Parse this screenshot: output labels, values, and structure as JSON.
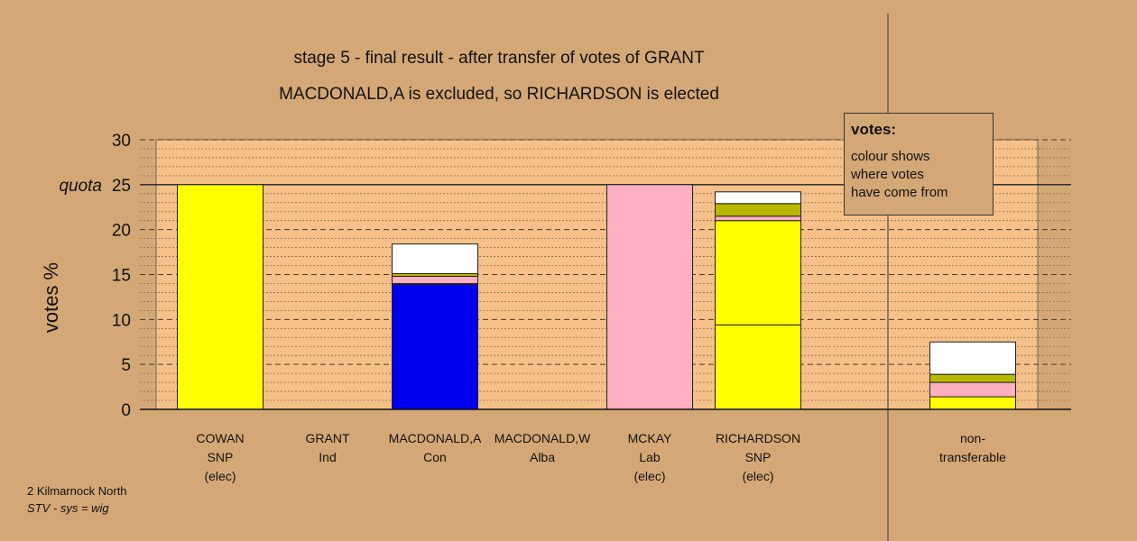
{
  "header": {
    "title_line1": "stage 5 - final result - after transfer of votes of GRANT",
    "title_line2": "MACDONALD,A is excluded, so RICHARDSON is elected"
  },
  "legend": {
    "title": "votes:",
    "lines": [
      "colour shows",
      "where votes",
      "have come from"
    ]
  },
  "footer": {
    "line1": "2 Kilmarnock North",
    "line2": "STV - sys = wig"
  },
  "colors": {
    "background": "#d4a876",
    "plot_background": "#f6c089",
    "SNP": "#ffff00",
    "Con": "#0000ee",
    "Lab": "#ffb0c0",
    "Alba": "#b8b800",
    "Ind": "#ffffff"
  },
  "chart_data": {
    "type": "bar",
    "stacked": true,
    "ylabel": "votes %",
    "ylim": [
      0,
      30
    ],
    "yticks": [
      0,
      5,
      10,
      15,
      20,
      25,
      30
    ],
    "quota": 25,
    "quota_label": "quota",
    "grid": "dashed",
    "categories": [
      {
        "lines": [
          "COWAN",
          "SNP",
          "(elec)"
        ]
      },
      {
        "lines": [
          "GRANT",
          "Ind"
        ]
      },
      {
        "lines": [
          "MACDONALD,A",
          "Con"
        ]
      },
      {
        "lines": [
          "MACDONALD,W",
          "Alba"
        ]
      },
      {
        "lines": [
          "MCKAY",
          "Lab",
          "(elec)"
        ]
      },
      {
        "lines": [
          "RICHARDSON",
          "SNP",
          "(elec)"
        ]
      },
      {
        "lines": [
          "non-",
          "transferable"
        ]
      }
    ],
    "bars": [
      {
        "segments": [
          {
            "source": "SNP",
            "value": 25.0
          }
        ]
      },
      {
        "segments": []
      },
      {
        "segments": [
          {
            "source": "Con",
            "value": 13.9
          },
          {
            "source": "SNP",
            "value": 0.1
          },
          {
            "source": "Lab",
            "value": 0.8
          },
          {
            "source": "Alba",
            "value": 0.3
          },
          {
            "source": "Ind",
            "value": 3.3
          }
        ]
      },
      {
        "segments": []
      },
      {
        "segments": [
          {
            "source": "Lab",
            "value": 25.0
          }
        ]
      },
      {
        "segments": [
          {
            "source": "SNP",
            "value": 9.4
          },
          {
            "source": "SNP",
            "value": 11.6
          },
          {
            "source": "Lab",
            "value": 0.5
          },
          {
            "source": "Alba",
            "value": 1.4
          },
          {
            "source": "Ind",
            "value": 1.3
          }
        ]
      },
      {
        "segments": [
          {
            "source": "SNP",
            "value": 1.4
          },
          {
            "source": "Lab",
            "value": 1.6
          },
          {
            "source": "Alba",
            "value": 0.9
          },
          {
            "source": "Ind",
            "value": 3.6
          }
        ]
      }
    ]
  }
}
